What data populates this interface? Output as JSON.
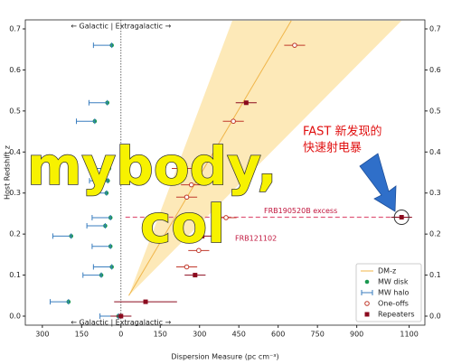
{
  "chart_data": {
    "type": "scatter",
    "xlabel": "Dispersion Measure (pc cm⁻³)",
    "ylabel": "Host Redshift z",
    "xlim": [
      -365,
      1160
    ],
    "ylim": [
      -0.022,
      0.722
    ],
    "xticks": [
      {
        "value": -300,
        "label": "300"
      },
      {
        "value": -150,
        "label": "150"
      },
      0,
      150,
      300,
      450,
      600,
      750,
      900,
      1100
    ],
    "yticks": [
      {
        "value": 0,
        "label": "0.0"
      },
      0.1,
      0.2,
      0.3,
      0.4,
      0.5,
      0.6,
      0.7
    ],
    "legend": "lower right",
    "band": {
      "color": "#fde9b8",
      "x_low": [
        30,
        425
      ],
      "x_high": [
        30,
        1071
      ],
      "values": [
        0.05,
        0.72
      ]
    },
    "series": [
      {
        "name": "DM-z",
        "kind": "line",
        "color": "#f0b54a",
        "x": [
          30,
          650
        ],
        "values": [
          0.05,
          0.72
        ]
      },
      {
        "name": "MW disk",
        "kind": "dot",
        "color": "#1a9850",
        "x": [
          -35,
          -52,
          -100,
          -45,
          -50,
          -55,
          -40,
          -60,
          -190,
          -40,
          -35,
          -75,
          -200,
          -10
        ],
        "values": [
          0.66,
          0.52,
          0.475,
          0.36,
          0.33,
          0.3,
          0.24,
          0.22,
          0.195,
          0.17,
          0.12,
          0.1,
          0.035,
          0.0
        ]
      },
      {
        "name": "MW halo",
        "kind": "errorbar",
        "color": "#3a7ebf",
        "x": [
          -70,
          -87,
          -135,
          -80,
          -85,
          -90,
          -75,
          -95,
          -225,
          -75,
          -70,
          -110,
          -235,
          -45
        ],
        "xerr": [
          35,
          35,
          35,
          35,
          35,
          35,
          35,
          35,
          35,
          35,
          35,
          35,
          35,
          35
        ],
        "values": [
          0.66,
          0.52,
          0.475,
          0.36,
          0.33,
          0.3,
          0.24,
          0.22,
          0.195,
          0.17,
          0.12,
          0.1,
          0.035,
          0.0
        ]
      },
      {
        "name": "One-offs",
        "kind": "open",
        "color": "#c0392b",
        "x": [
          663,
          429,
          234,
          269,
          251,
          401,
          297,
          251
        ],
        "xerr": [
          40,
          40,
          40,
          40,
          40,
          40,
          40,
          40
        ],
        "values": [
          0.66,
          0.475,
          0.36,
          0.32,
          0.29,
          0.24,
          0.16,
          0.12
        ]
      },
      {
        "name": "Repeaters",
        "kind": "square",
        "color": "#8b0a1e",
        "x": [
          478,
          310,
          283,
          94,
          0,
          1071
        ],
        "xerr": [
          40,
          40,
          40,
          120,
          40,
          40
        ],
        "values": [
          0.52,
          0.195,
          0.1,
          0.035,
          0.0,
          0.241
        ]
      }
    ],
    "annotations": {
      "top": "← Galactic | Extragalactic →",
      "bottom": "← Galactic | Extragalactic →",
      "excess": "FRB190520B excess",
      "frb121102": "FRB121102",
      "cn1": "FAST 新发现的",
      "cn2": "快速射电暴"
    },
    "watermark": [
      "mybody,",
      "col"
    ]
  }
}
